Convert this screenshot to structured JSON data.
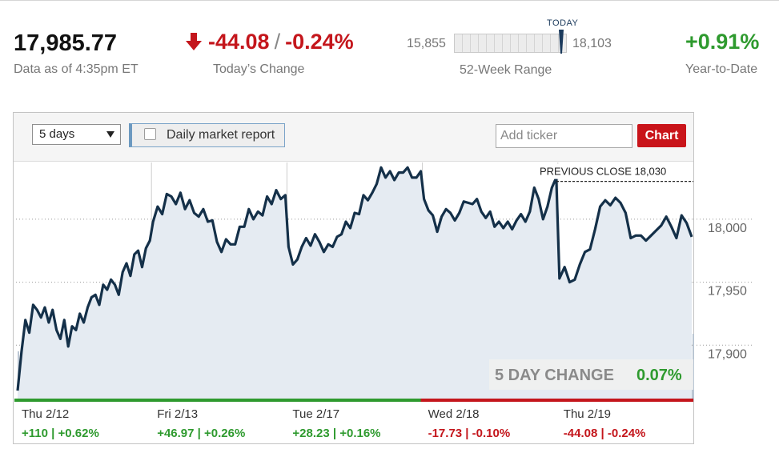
{
  "quote": {
    "price": "17,985.77",
    "as_of": "Data as of 4:35pm ET",
    "change_value": "-44.08",
    "change_sep": "/",
    "change_percent": "-0.24%",
    "change_label": "Today’s Change",
    "change_direction_icon": "arrow-down-icon",
    "range_low": "15,855",
    "range_high": "18,103",
    "range_today_label": "TODAY",
    "range_today_position": 0.955,
    "range_label": "52-Week Range",
    "ytd_value": "+0.91%",
    "ytd_label": "Year-to-Date"
  },
  "toolbar": {
    "period": "5 days",
    "report_label": "Daily market report",
    "report_checked": false,
    "ticker_placeholder": "Add ticker",
    "chart_button": "Chart"
  },
  "colors": {
    "line": "#143049",
    "area": "#e5ebf2",
    "up": "#2e9a2e",
    "down": "#c4161c",
    "volume": "#bac6d3",
    "accent_button": "#c9141a"
  },
  "chart_data": {
    "type": "area",
    "y_axis_ticks": [
      "18,000",
      "17,950",
      "17,900"
    ],
    "y_tick_values": [
      18000,
      17950,
      17900
    ],
    "ylim": [
      17857,
      18045
    ],
    "grid": "horizontal-dotted",
    "previous_close_label": "PREVIOUS CLOSE 18,030",
    "previous_close": 18030,
    "five_day_change_label": "5 DAY CHANGE",
    "five_day_change_value": "0.07%",
    "days": [
      {
        "label": "Thu 2/12",
        "change": "+110 | +0.62%",
        "direction": "up"
      },
      {
        "label": "Fri 2/13",
        "change": "+46.97 | +0.26%",
        "direction": "up"
      },
      {
        "label": "Tue 2/17",
        "change": "+28.23 | +0.16%",
        "direction": "up"
      },
      {
        "label": "Wed 2/18",
        "change": "-17.73 | -0.10%",
        "direction": "down"
      },
      {
        "label": "Thu 2/19",
        "change": "-44.08 | -0.24%",
        "direction": "down"
      }
    ],
    "series": [
      {
        "values": [
          [
            17864,
            17895,
            17920,
            17910,
            17932,
            17928,
            17922,
            17930,
            17918,
            17928,
            17912,
            17905,
            17920,
            17899,
            17915,
            17912,
            17925,
            17918,
            17930,
            17938,
            17940,
            17932,
            17948,
            17944,
            17952,
            17948,
            17940,
            17958,
            17965,
            17955,
            17972,
            17975,
            17962,
            17977,
            17983
          ],
          [
            17998,
            18010,
            18004,
            18020,
            18018,
            18012,
            18021,
            18008,
            18015,
            18005,
            18002,
            18008,
            17998,
            17999,
            17982,
            17974,
            17984,
            17980,
            17980,
            17994,
            17994,
            18008,
            18000,
            18006,
            18003,
            18018,
            18012,
            18023,
            18016,
            18019
          ],
          [
            17978,
            17964,
            17968,
            17978,
            17985,
            17979,
            17988,
            17982,
            17974,
            17980,
            17978,
            17986,
            17988,
            17998,
            17993,
            18005,
            18004,
            18019,
            18015,
            18021,
            18028,
            18041,
            18033,
            18038,
            18031,
            18037,
            18037,
            18041,
            18033,
            18033,
            18038
          ],
          [
            18016,
            18007,
            18003,
            17990,
            18002,
            18008,
            18005,
            17999,
            18005,
            18014,
            18013,
            18012,
            18016,
            18006,
            18001,
            18006,
            17994,
            17998,
            17993,
            17998,
            17992,
            17999,
            18004,
            17998,
            18006,
            18025,
            18016,
            18000,
            18010,
            18025,
            18033
          ],
          [
            17953,
            17962,
            17950,
            17952,
            17964,
            17974,
            17976,
            17992,
            18010,
            18015,
            18011,
            18017,
            18013,
            18005,
            17985,
            17987,
            17987,
            17983,
            17987,
            17991,
            17995,
            18002,
            17994,
            17985,
            18003,
            17997,
            17986
          ]
        ]
      }
    ]
  }
}
